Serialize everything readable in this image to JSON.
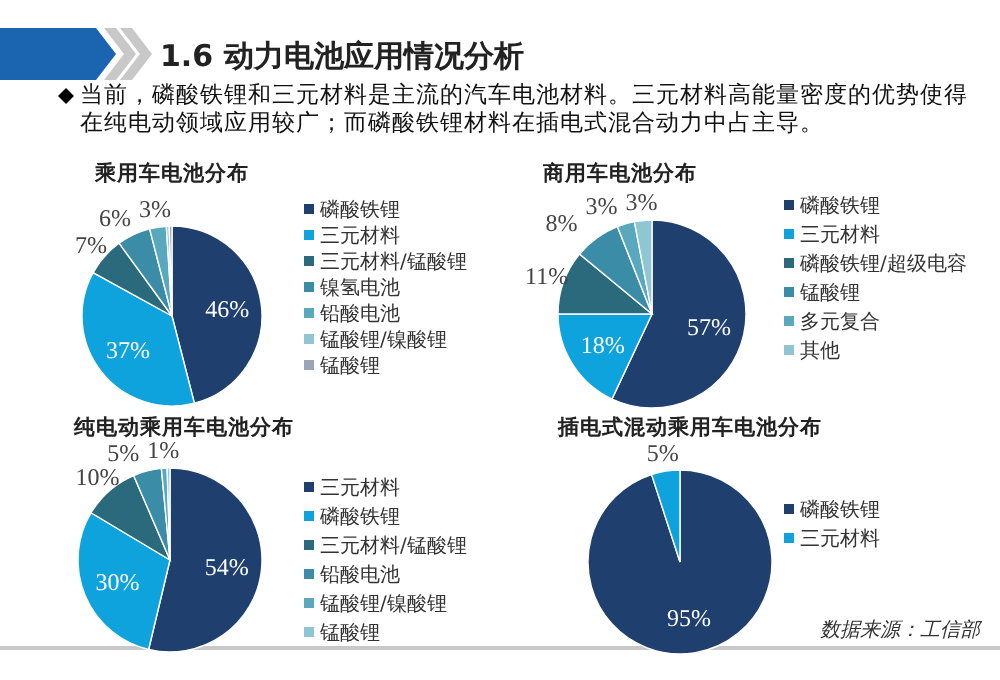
{
  "chart_data": [
    {
      "type": "other",
      "title": "1.6 动力电池应用情况分析",
      "subtitle": "当前，磷酸铁锂和三元材料是主流的汽车电池材料。三元材料高能量密度的优势使得在纯电动领域应用较广；而磷酸铁锂材料在插电式混合动力中占主导。"
    },
    {
      "type": "pie",
      "title": "乘用车电池分布",
      "legend": "right",
      "categories": [
        "磷酸铁锂",
        "三元材料",
        "三元材料/锰酸锂",
        "镍氢电池",
        "铅酸电池",
        "锰酸锂/镍酸锂",
        "锰酸锂"
      ],
      "values": [
        46,
        37,
        7,
        6,
        3,
        0.5,
        0.5
      ],
      "value_labels": [
        "46%",
        "37%",
        "7%",
        "6%",
        "3%",
        null,
        null
      ],
      "colors": [
        "#1f3f6e",
        "#0fa3de",
        "#2a6a7c",
        "#3b8ca6",
        "#5aa8bd",
        "#8ec6d3",
        "#9aa6b8"
      ]
    },
    {
      "type": "pie",
      "title": "商用车电池分布",
      "legend": "right",
      "categories": [
        "磷酸铁锂",
        "三元材料",
        "磷酸铁锂/超级电容",
        "锰酸锂",
        "多元复合",
        "其他"
      ],
      "values": [
        57,
        18,
        11,
        8,
        3,
        3
      ],
      "value_labels": [
        "57%",
        "18%",
        "11%",
        "8%",
        "3%",
        "3%"
      ],
      "colors": [
        "#1f3f6e",
        "#0fa3de",
        "#2a6a7c",
        "#3b8ca6",
        "#5aa8bd",
        "#8ec6d3"
      ]
    },
    {
      "type": "pie",
      "title": "纯电动乘用车电池分布",
      "legend": "right",
      "categories": [
        "三元材料",
        "磷酸铁锂",
        "三元材料/锰酸锂",
        "铅酸电池",
        "锰酸锂/镍酸锂",
        "锰酸锂"
      ],
      "values": [
        54,
        30,
        10,
        5,
        1,
        0.5
      ],
      "value_labels": [
        "54%",
        "30%",
        "10%",
        "5%",
        "1%",
        null
      ],
      "colors": [
        "#1f3f6e",
        "#0fa3de",
        "#2a6a7c",
        "#3b8ca6",
        "#5aa8bd",
        "#8ec6d3"
      ]
    },
    {
      "type": "pie",
      "title": "插电式混动乘用车电池分布",
      "legend": "right",
      "categories": [
        "磷酸铁锂",
        "三元材料"
      ],
      "values": [
        95,
        5
      ],
      "value_labels": [
        "95%",
        "5%"
      ],
      "colors": [
        "#1f3f6e",
        "#0fa3de"
      ],
      "annotations": [
        "数据来源：工信部"
      ]
    }
  ]
}
